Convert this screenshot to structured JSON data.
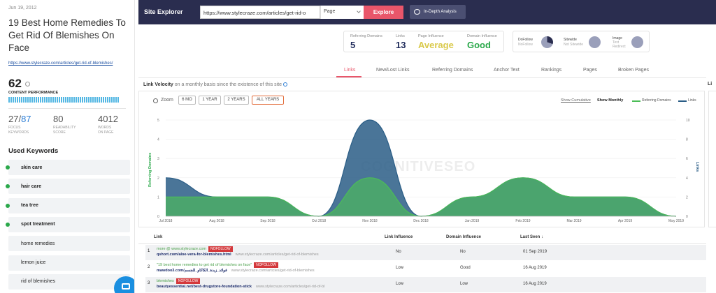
{
  "left": {
    "date": "Jun 19, 2012",
    "title": "19 Best Home Remedies To Get Rid Of Blemishes On Face",
    "url": "https://www.stylecraze.com/articles/get-rid-of-blemishes/",
    "score": "62",
    "content_performance_label": "CONTENT PERFORMANCE",
    "metrics": [
      {
        "value_a": "27/",
        "value_b": "87",
        "label1": "FOCUS",
        "label2": "KEYWORDS"
      },
      {
        "value": "80",
        "label1": "READABILITY",
        "label2": "SCORE"
      },
      {
        "value": "4012",
        "label1": "WORDS",
        "label2": "ON PAGE"
      }
    ],
    "used_keywords_label": "Used Keywords",
    "keywords": [
      {
        "text": "skin care",
        "used": true
      },
      {
        "text": "hair care",
        "used": true
      },
      {
        "text": "tea tree",
        "used": true
      },
      {
        "text": "spot treatment",
        "used": true
      },
      {
        "text": "home remedies",
        "used": false
      },
      {
        "text": "lemon juice",
        "used": false
      },
      {
        "text": "rid of blemishes",
        "used": false
      }
    ]
  },
  "topbar": {
    "title": "Site Explorer",
    "url_value": "https://www.stylecraze.com/articles/get-rid-o",
    "select_value": "Page",
    "explore_label": "Explore",
    "in_depth_label": "In-Depth Analysis"
  },
  "stats": {
    "referring_domains_label": "Referring Domains",
    "referring_domains": "5",
    "links_label": "Links",
    "links": "13",
    "page_influence_label": "Page Influence",
    "page_influence": "Average",
    "domain_influence_label": "Domain Influence",
    "domain_influence": "Good",
    "page_influence_color": "#d9c94a",
    "domain_influence_color": "#2aa84a"
  },
  "link_types": [
    {
      "l1": "DoFollow",
      "l2": "NoFollow"
    },
    {
      "l1": "Sitewide",
      "l2": "Not Sitewide"
    },
    {
      "l1": "Image",
      "l2": "Text",
      "l3": "Redirect"
    }
  ],
  "tabs": [
    "Links",
    "New/Lost Links",
    "Referring Domains",
    "Anchor Text",
    "Rankings",
    "Pages",
    "Broken Pages"
  ],
  "velocity": {
    "title": "Link Velocity",
    "subtitle": "on a monthly basis since the existence of this site",
    "zoom_label": "Zoom",
    "zoom_buttons": [
      "6 MO",
      "1 YEAR",
      "2 YEARS",
      "ALL YEARS"
    ],
    "show_cumulative": "Show Cumulative",
    "show_monthly": "Show Monthly",
    "watermark": "COGNITIVESEO",
    "right_panel_letter": "Li"
  },
  "chart_data": {
    "type": "area",
    "x": [
      "Jul 2018",
      "Aug 2018",
      "Sep 2018",
      "Oct 2018",
      "Nov 2018",
      "Dec 2018",
      "Jan 2019",
      "Feb 2019",
      "Mar 2019",
      "Apr 2019",
      "May 2019"
    ],
    "series": [
      {
        "name": "Referring Domains",
        "axis": "left",
        "color": "#4cbd57",
        "values": [
          1,
          1,
          1,
          0,
          2,
          0,
          1,
          2,
          1,
          1,
          0
        ]
      },
      {
        "name": "Links",
        "axis": "right",
        "color": "#2a5d86",
        "values": [
          4,
          2,
          2,
          0,
          10,
          0,
          2,
          4,
          2,
          2,
          0
        ]
      }
    ],
    "ylabel": "Referring Domains",
    "y2label": "Links",
    "ylim": [
      0,
      5
    ],
    "y2lim": [
      0,
      10
    ],
    "yticks": [
      0,
      1,
      2,
      3,
      4,
      5
    ],
    "y2ticks": [
      0,
      2,
      4,
      6,
      8,
      10
    ],
    "colors": {
      "referring": "#4cbd57",
      "links": "#2a5d86"
    }
  },
  "table": {
    "headers": [
      "Link",
      "Link Influence",
      "Domain Influence",
      "Last Seen"
    ],
    "rows": [
      {
        "n": "1",
        "anchor": "more @ www.stylecraze.com",
        "nofollow": "NOFOLLOW",
        "link": "qshort.com/aloe-vera-for-blemishes.html",
        "target": "www.stylecraze.com/articles/get-rid-of-blemishes",
        "li": "No",
        "di": "No",
        "seen": "01 Sep 2019"
      },
      {
        "n": "2",
        "anchor": "\"19 best home remedies to get rid of blemishes on face\"",
        "nofollow": "NOFOLLOW",
        "link": "mawdoo3.com/فوائد_زبدة_الكاكاو_للجسم",
        "target": "www.stylecraze.com/articles/get-rid-of-blemishes",
        "li": "Low",
        "di": "Good",
        "seen": "16 Aug 2019"
      },
      {
        "n": "3",
        "anchor": "blemishes",
        "nofollow": "NOFOLLOW",
        "link": "beautyessential.net/best-drugstore-foundation-stick",
        "target": "www.stylecraze.com/articles/get-rid-of-bl",
        "li": "Low",
        "di": "Low",
        "seen": "16 Aug 2019"
      }
    ]
  }
}
